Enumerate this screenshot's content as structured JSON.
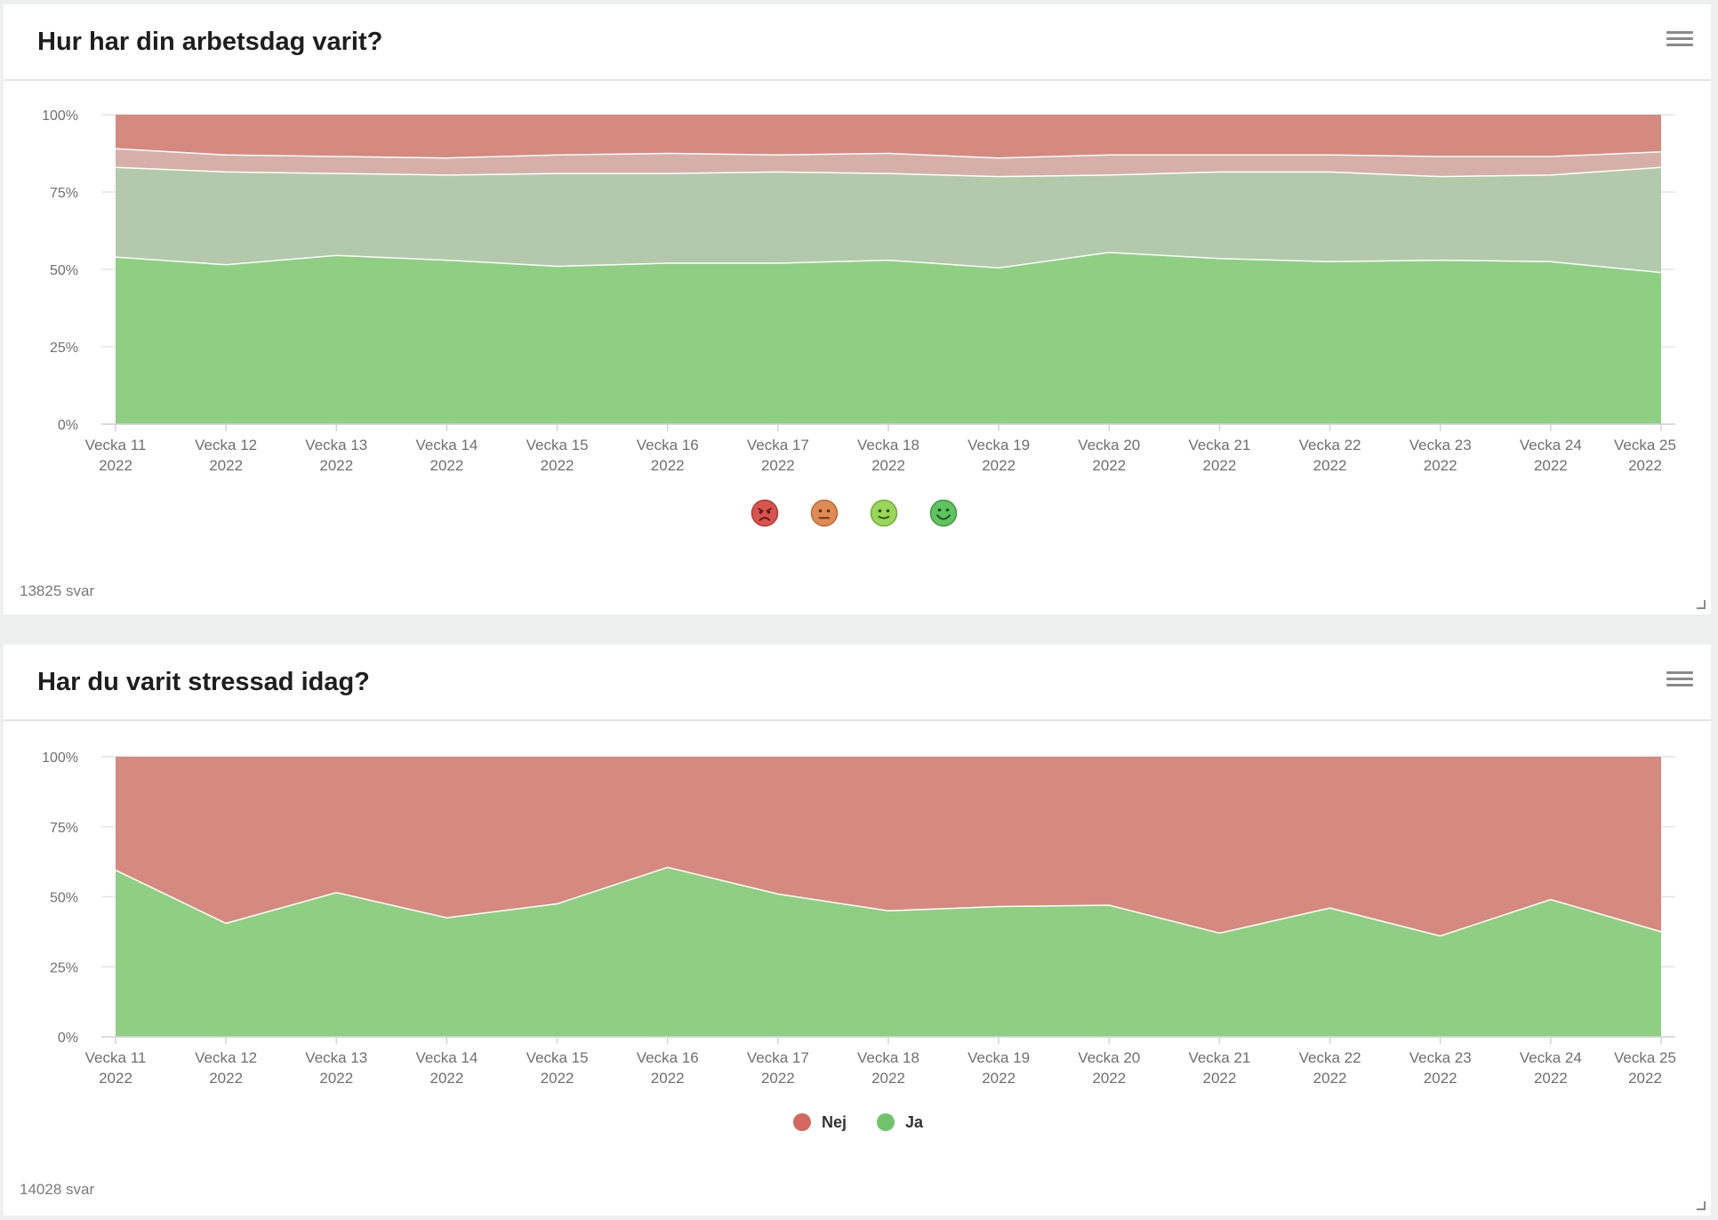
{
  "cards": [
    {
      "title": "Hur har din arbetsdag varit?",
      "response_count": "13825 svar",
      "legend": [
        {
          "name": "angry-face-icon",
          "color": "#d9534f"
        },
        {
          "name": "neutral-face-icon",
          "color": "#e08a55"
        },
        {
          "name": "slight-smile-face-icon",
          "color": "#9ad65c"
        },
        {
          "name": "happy-face-icon",
          "color": "#5fc45f"
        }
      ]
    },
    {
      "title": "Har du varit stressad idag?",
      "response_count": "14028 svar",
      "legend": [
        {
          "label": "Nej",
          "color": "#d4685f"
        },
        {
          "label": "Ja",
          "color": "#72c46a"
        }
      ]
    }
  ],
  "chart_data": [
    {
      "type": "area",
      "stacking": "percent",
      "title": "Hur har din arbetsdag varit?",
      "categories": [
        [
          "Vecka 11",
          "2022"
        ],
        [
          "Vecka 12",
          "2022"
        ],
        [
          "Vecka 13",
          "2022"
        ],
        [
          "Vecka 14",
          "2022"
        ],
        [
          "Vecka 15",
          "2022"
        ],
        [
          "Vecka 16",
          "2022"
        ],
        [
          "Vecka 17",
          "2022"
        ],
        [
          "Vecka 18",
          "2022"
        ],
        [
          "Vecka 19",
          "2022"
        ],
        [
          "Vecka 20",
          "2022"
        ],
        [
          "Vecka 21",
          "2022"
        ],
        [
          "Vecka 22",
          "2022"
        ],
        [
          "Vecka 23",
          "2022"
        ],
        [
          "Vecka 24",
          "2022"
        ],
        [
          "Vecka 25",
          "2022"
        ]
      ],
      "yticks": [
        "0%",
        "25%",
        "50%",
        "75%",
        "100%"
      ],
      "ylim": [
        0,
        100
      ],
      "series": [
        {
          "name": "very-happy",
          "color": "#8fcf83",
          "values": [
            54,
            51.5,
            54.5,
            53,
            51,
            52,
            52,
            53,
            50.5,
            55.5,
            53.5,
            52.5,
            53,
            52.5,
            49
          ]
        },
        {
          "name": "happy",
          "color": "#b2c9ac",
          "values": [
            29,
            30,
            26.5,
            27.5,
            30,
            29,
            29.5,
            28,
            29.5,
            25,
            28,
            29,
            27,
            28,
            34
          ]
        },
        {
          "name": "neutral",
          "color": "#d5afa8",
          "values": [
            6,
            5.5,
            5.5,
            5.5,
            6,
            6.5,
            5.5,
            6.5,
            6,
            6.5,
            5.5,
            5.5,
            6.5,
            6,
            5
          ]
        },
        {
          "name": "unhappy",
          "color": "#d6897f",
          "values": [
            11,
            13,
            13.5,
            14,
            13,
            12.5,
            13,
            12.5,
            14,
            13,
            13,
            13,
            13.5,
            13.5,
            12
          ]
        }
      ]
    },
    {
      "type": "area",
      "stacking": "percent",
      "title": "Har du varit stressad idag?",
      "categories": [
        [
          "Vecka 11",
          "2022"
        ],
        [
          "Vecka 12",
          "2022"
        ],
        [
          "Vecka 13",
          "2022"
        ],
        [
          "Vecka 14",
          "2022"
        ],
        [
          "Vecka 15",
          "2022"
        ],
        [
          "Vecka 16",
          "2022"
        ],
        [
          "Vecka 17",
          "2022"
        ],
        [
          "Vecka 18",
          "2022"
        ],
        [
          "Vecka 19",
          "2022"
        ],
        [
          "Vecka 20",
          "2022"
        ],
        [
          "Vecka 21",
          "2022"
        ],
        [
          "Vecka 22",
          "2022"
        ],
        [
          "Vecka 23",
          "2022"
        ],
        [
          "Vecka 24",
          "2022"
        ],
        [
          "Vecka 25",
          "2022"
        ]
      ],
      "yticks": [
        "0%",
        "25%",
        "50%",
        "75%",
        "100%"
      ],
      "ylim": [
        0,
        100
      ],
      "series": [
        {
          "name": "Ja",
          "color": "#8fcf83",
          "values": [
            59.5,
            40.5,
            51.5,
            42.5,
            47.5,
            60.5,
            51,
            45,
            46.5,
            47,
            37,
            46,
            36,
            49,
            37.5
          ]
        },
        {
          "name": "Nej",
          "color": "#d6897f",
          "values": [
            40.5,
            59.5,
            48.5,
            57.5,
            52.5,
            39.5,
            49,
            55,
            53.5,
            53,
            63,
            54,
            64,
            51,
            62.5
          ]
        }
      ]
    }
  ]
}
